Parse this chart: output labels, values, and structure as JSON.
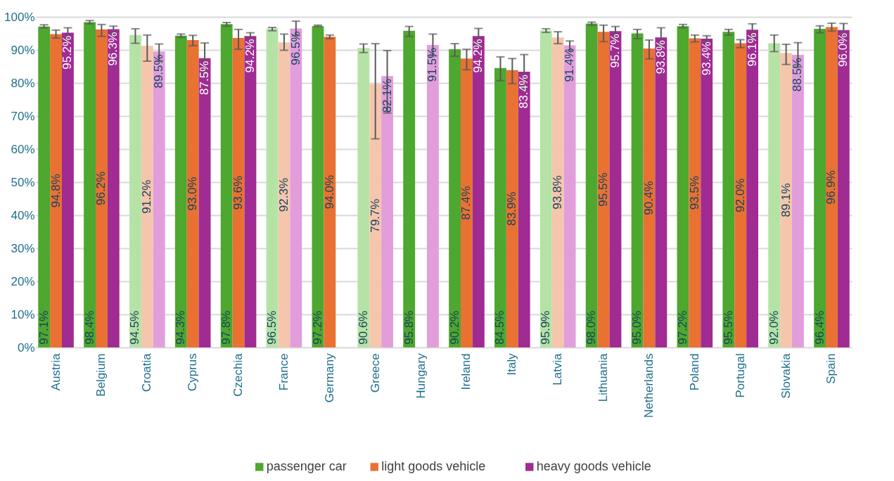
{
  "chart_data": {
    "type": "bar",
    "categories": [
      "Austria",
      "Belgium",
      "Croatia",
      "Cyprus",
      "Czechia",
      "France",
      "Germany",
      "Greece",
      "Hungary",
      "Ireland",
      "Italy",
      "Latvia",
      "Lithuania",
      "Netherlands",
      "Poland",
      "Portugal",
      "Slovakia",
      "Spain"
    ],
    "series": [
      {
        "name": "passenger car",
        "color": "#4ea72e",
        "colors": [
          "#4ea72e",
          "#4ea72e",
          "#b5e3a5",
          "#4ea72e",
          "#4ea72e",
          "#b5e3a5",
          "#4ea72e",
          "#b5e3a5",
          "#4ea72e",
          "#4ea72e",
          "#4ea72e",
          "#b5e3a5",
          "#4ea72e",
          "#4ea72e",
          "#4ea72e",
          "#4ea72e",
          "#b5e3a5",
          "#4ea72e"
        ],
        "values": [
          97.1,
          98.4,
          94.5,
          94.3,
          97.8,
          96.5,
          97.2,
          90.6,
          95.8,
          90.2,
          84.5,
          95.9,
          98.0,
          95.0,
          97.2,
          95.5,
          92.0,
          96.4
        ],
        "value_labels": [
          "97.1%",
          "98.4%",
          "94.5%",
          "94.3%",
          "97.8%",
          "96.5%",
          "97.2%",
          "90.6%",
          "95.8%",
          "90.2%",
          "84.5%",
          "95.9%",
          "98.0%",
          "95.0%",
          "97.2%",
          "95.5%",
          "92.0%",
          "96.4%"
        ],
        "errors": [
          [
            96.7,
            97.6
          ],
          [
            97.9,
            98.9
          ],
          [
            92.0,
            96.4
          ],
          [
            93.8,
            94.8
          ],
          [
            97.2,
            98.3
          ],
          [
            95.8,
            96.8
          ],
          [
            97.1,
            97.5
          ],
          [
            89.2,
            91.8
          ],
          [
            94.1,
            97.1
          ],
          [
            88.1,
            91.9
          ],
          [
            80.7,
            87.9
          ],
          [
            95.3,
            96.4
          ],
          [
            97.5,
            98.4
          ],
          [
            93.4,
            96.2
          ],
          [
            96.7,
            97.7
          ],
          [
            94.5,
            96.2
          ],
          [
            89.5,
            94.5
          ],
          [
            95.2,
            97.3
          ]
        ]
      },
      {
        "name": "light goods vehicle",
        "color": "#e97132",
        "colors": [
          "#e97132",
          "#e97132",
          "#f5c6ac",
          "#e97132",
          "#e97132",
          "#f5c6ac",
          "#e97132",
          "#f5c6ac",
          "#e97132",
          "#e97132",
          "#e97132",
          "#f5c6ac",
          "#e97132",
          "#e97132",
          "#e97132",
          "#e97132",
          "#f5c6ac",
          "#e97132"
        ],
        "values": [
          94.8,
          96.2,
          91.2,
          93.0,
          93.6,
          92.3,
          94.0,
          79.7,
          null,
          87.4,
          83.9,
          93.8,
          95.5,
          90.4,
          93.5,
          92.0,
          89.1,
          96.9
        ],
        "value_labels": [
          "94.8%",
          "96.2%",
          "91.2%",
          "93.0%",
          "93.6%",
          "92.3%",
          "94.0%",
          "79.7%",
          null,
          "87.4%",
          "83.9%",
          "93.8%",
          "95.5%",
          "90.4%",
          "93.5%",
          "92.0%",
          "89.1%",
          "96.9%"
        ],
        "errors": [
          [
            93.6,
            96.0
          ],
          [
            94.1,
            97.7
          ],
          [
            86.6,
            94.5
          ],
          [
            91.3,
            94.4
          ],
          [
            90.2,
            96.2
          ],
          [
            89.9,
            94.8
          ],
          [
            93.4,
            94.5
          ],
          [
            63.1,
            91.9
          ],
          null,
          [
            84.0,
            90.2
          ],
          [
            79.8,
            87.4
          ],
          [
            91.9,
            95.5
          ],
          [
            92.5,
            97.5
          ],
          [
            87.3,
            93.0
          ],
          [
            92.4,
            94.5
          ],
          [
            90.7,
            93.1
          ],
          [
            85.6,
            91.7
          ],
          [
            95.7,
            98.1
          ]
        ]
      },
      {
        "name": "heavy goods vehicle",
        "color": "#a02b93",
        "colors": [
          "#a02b93",
          "#a02b93",
          "#e29edb",
          "#a02b93",
          "#a02b93",
          "#e29edb",
          "#a02b93",
          "#e29edb",
          "#e29edb",
          "#a02b93",
          "#a02b93",
          "#e29edb",
          "#a02b93",
          "#a02b93",
          "#a02b93",
          "#a02b93",
          "#e29edb",
          "#a02b93"
        ],
        "values": [
          95.2,
          96.3,
          89.5,
          87.5,
          94.2,
          96.5,
          null,
          82.1,
          91.5,
          94.2,
          83.4,
          91.4,
          95.7,
          93.8,
          93.4,
          96.1,
          88.5,
          96.0
        ],
        "value_labels": [
          "95.2%",
          "96.3%",
          "89.5%",
          "87.5%",
          "94.2%",
          "96.5%",
          null,
          "82.1%",
          "91.5%",
          "94.2%",
          "83.4%",
          "91.4%",
          "95.7%",
          "93.8%",
          "93.4%",
          "96.1%",
          "88.5%",
          "96.0%"
        ],
        "errors": [
          [
            93.4,
            96.7
          ],
          [
            95.1,
            97.2
          ],
          [
            86.7,
            91.8
          ],
          [
            83.2,
            92.1
          ],
          [
            93.0,
            95.2
          ],
          [
            94.3,
            98.7
          ],
          null,
          [
            70.9,
            89.8
          ],
          [
            88.2,
            94.8
          ],
          [
            91.2,
            96.5
          ],
          [
            78.2,
            88.6
          ],
          [
            89.9,
            92.7
          ],
          [
            93.8,
            97.1
          ],
          [
            91.0,
            96.7
          ],
          [
            92.1,
            94.3
          ],
          [
            93.4,
            97.9
          ],
          [
            84.8,
            92.2
          ],
          [
            94.0,
            98.0
          ]
        ]
      }
    ],
    "ylim": [
      0,
      100
    ],
    "yticks": [
      {
        "value": 0,
        "label": "0%"
      },
      {
        "value": 10,
        "label": "10%"
      },
      {
        "value": 20,
        "label": "20%"
      },
      {
        "value": 30,
        "label": "30%"
      },
      {
        "value": 40,
        "label": "40%"
      },
      {
        "value": 50,
        "label": "50%"
      },
      {
        "value": 60,
        "label": "60%"
      },
      {
        "value": 70,
        "label": "70%"
      },
      {
        "value": 80,
        "label": "80%"
      },
      {
        "value": 90,
        "label": "90%"
      },
      {
        "value": 100,
        "label": "100%"
      }
    ],
    "grid": "y",
    "legend": "bottom"
  }
}
